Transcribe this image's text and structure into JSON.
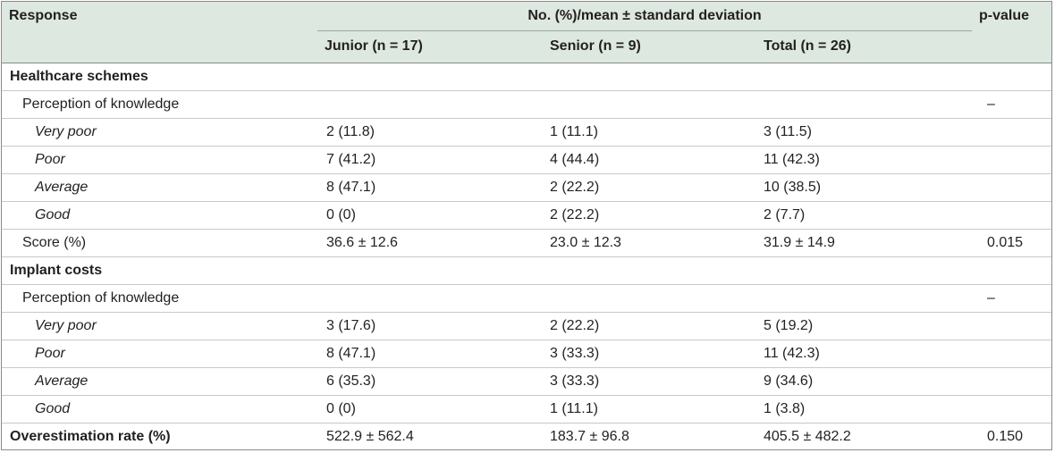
{
  "table": {
    "header": {
      "response": "Response",
      "group": "No. (%)/mean ± standard deviation",
      "pvalue": "p-value",
      "junior": "Junior (n = 17)",
      "senior": "Senior (n = 9)",
      "total": "Total (n = 26)"
    },
    "rows": [
      {
        "label": "Healthcare schemes",
        "level": 0,
        "junior": "",
        "senior": "",
        "total": "",
        "p": ""
      },
      {
        "label": "Perception of knowledge",
        "level": 1,
        "junior": "",
        "senior": "",
        "total": "",
        "p": "–"
      },
      {
        "label": "Very poor",
        "level": 2,
        "junior": "2 (11.8)",
        "senior": "1 (11.1)",
        "total": "3 (11.5)",
        "p": ""
      },
      {
        "label": "Poor",
        "level": 2,
        "junior": "7 (41.2)",
        "senior": "4 (44.4)",
        "total": "11 (42.3)",
        "p": ""
      },
      {
        "label": "Average",
        "level": 2,
        "junior": "8 (47.1)",
        "senior": "2 (22.2)",
        "total": "10 (38.5)",
        "p": ""
      },
      {
        "label": "Good",
        "level": 2,
        "junior": "0 (0)",
        "senior": "2 (22.2)",
        "total": "2 (7.7)",
        "p": ""
      },
      {
        "label": "Score (%)",
        "level": 1,
        "junior": "36.6 ± 12.6",
        "senior": "23.0 ± 12.3",
        "total": "31.9 ± 14.9",
        "p": "0.015"
      },
      {
        "label": "Implant costs",
        "level": 0,
        "junior": "",
        "senior": "",
        "total": "",
        "p": ""
      },
      {
        "label": "Perception of knowledge",
        "level": 1,
        "junior": "",
        "senior": "",
        "total": "",
        "p": "–"
      },
      {
        "label": "Very poor",
        "level": 2,
        "junior": "3 (17.6)",
        "senior": "2 (22.2)",
        "total": "5 (19.2)",
        "p": ""
      },
      {
        "label": "Poor",
        "level": 2,
        "junior": "8 (47.1)",
        "senior": "3 (33.3)",
        "total": "11 (42.3)",
        "p": ""
      },
      {
        "label": "Average",
        "level": 2,
        "junior": "6 (35.3)",
        "senior": "3 (33.3)",
        "total": "9 (34.6)",
        "p": ""
      },
      {
        "label": "Good",
        "level": 2,
        "junior": "0 (0)",
        "senior": "1 (11.1)",
        "total": "1 (3.8)",
        "p": ""
      },
      {
        "label": "Overestimation rate (%)",
        "level": 0,
        "junior": "522.9 ± 562.4",
        "senior": "183.7 ± 96.8",
        "total": "405.5 ± 482.2",
        "p": "0.150"
      }
    ]
  }
}
